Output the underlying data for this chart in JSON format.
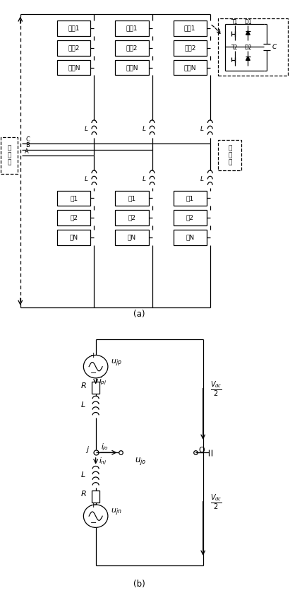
{
  "fig_width": 4.11,
  "fig_height": 8.39,
  "dpi": 100,
  "bg_color": "#ffffff",
  "line_color": "#000000",
  "label_a": "(a)",
  "label_b": "(b)",
  "module_labels_upper": [
    "模块1",
    "模块2",
    "模块N"
  ],
  "module_labels_lower": [
    "樂1",
    "樂2",
    "樂N"
  ],
  "bus_labels": [
    "A",
    "B",
    "C"
  ],
  "dc_label": "直\n流\n侧",
  "ac_label": "交\n流\n侧"
}
